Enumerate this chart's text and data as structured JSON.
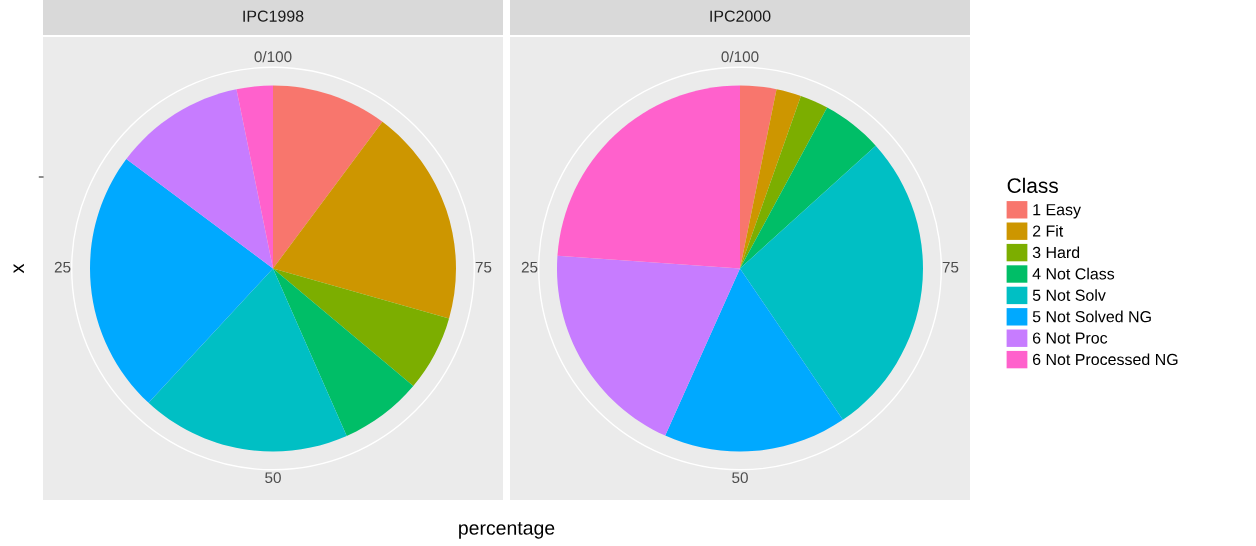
{
  "chart_data": [
    {
      "type": "pie",
      "title": "IPC1998",
      "xlabel": "percentage",
      "ylabel": "x",
      "legend_title": "Class",
      "legend": "right",
      "categories": [
        "1 Easy",
        "2 Fit",
        "3 Hard",
        "4 Not Class",
        "5 Not Solv",
        "5 Not Solved NG",
        "6 Not Proc",
        "6 Not Processed NG"
      ],
      "values": [
        10.2,
        19.2,
        6.7,
        7.3,
        18.5,
        23.3,
        11.6,
        3.2
      ],
      "colors": [
        "#F8766D",
        "#CD9600",
        "#7CAE00",
        "#00BE67",
        "#00BFC4",
        "#00A9FF",
        "#C77CFF",
        "#FF61CC"
      ],
      "annotations": [
        "0/100",
        "25",
        "50",
        "75"
      ]
    },
    {
      "type": "pie",
      "title": "IPC2000",
      "categories": [
        null,
        null,
        null,
        null,
        null,
        null,
        null,
        null
      ],
      "values": [
        3.2,
        2.2,
        2.5,
        5.4,
        27.2,
        16.2,
        19.4,
        23.9
      ],
      "colors": [
        "#F8766D",
        "#CD9600",
        "#7CAE00",
        "#00BE67",
        "#00BFC4",
        "#00A9FF",
        "#C77CFF",
        "#FF61CC"
      ],
      "annotations": [
        "0/100",
        "25",
        "50",
        "75"
      ]
    }
  ]
}
